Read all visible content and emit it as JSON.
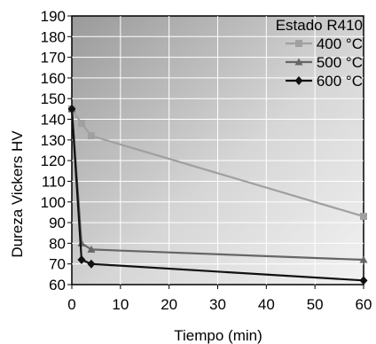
{
  "chart_data": {
    "type": "line",
    "title": "",
    "xlabel": "Tiempo (min)",
    "ylabel": "Dureza Vickers HV",
    "xlim": [
      0,
      60
    ],
    "ylim": [
      60,
      190
    ],
    "x_ticks": [
      0,
      10,
      20,
      30,
      40,
      50,
      60
    ],
    "y_ticks": [
      60,
      70,
      80,
      90,
      100,
      110,
      120,
      130,
      140,
      150,
      160,
      170,
      180,
      190
    ],
    "grid": true,
    "legend_title": "Estado R410",
    "legend_position": "top-right",
    "series": [
      {
        "name": "400 °C",
        "color": "#a0a0a0",
        "marker": "square",
        "points": [
          [
            0,
            145
          ],
          [
            2,
            138
          ],
          [
            4,
            132
          ],
          [
            60,
            93
          ]
        ]
      },
      {
        "name": "500 °C",
        "color": "#666666",
        "marker": "triangle",
        "points": [
          [
            0,
            145
          ],
          [
            2,
            80
          ],
          [
            4,
            77
          ],
          [
            60,
            72
          ]
        ]
      },
      {
        "name": "600 °C",
        "color": "#111111",
        "marker": "diamond",
        "points": [
          [
            0,
            145
          ],
          [
            2,
            72
          ],
          [
            4,
            70
          ],
          [
            60,
            62
          ]
        ]
      }
    ]
  }
}
